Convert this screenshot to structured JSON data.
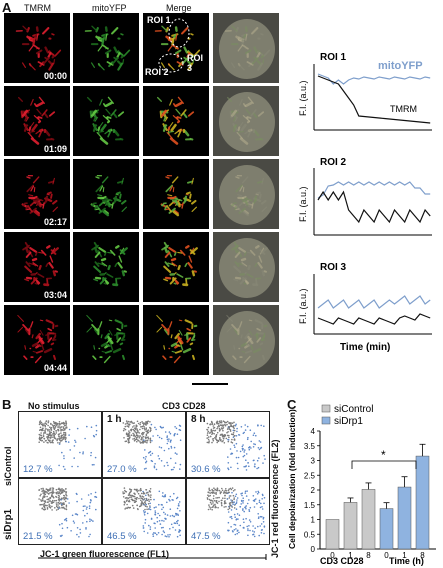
{
  "panel_a": {
    "letter": "A",
    "columns": [
      "TMRM",
      "mitoYFP",
      "Merge",
      ""
    ],
    "timestamps": [
      "00:00",
      "01:09",
      "02:17",
      "03:04",
      "04:44"
    ],
    "roi_labels_on_image": [
      "ROI 1",
      "ROI 2",
      "ROI 3"
    ],
    "traces": {
      "ylabel": "F.I. (a.u.)",
      "xlabel": "Time (min)",
      "roi1_title": "ROI 1",
      "roi2_title": "ROI 2",
      "roi3_title": "ROI 3",
      "mito_label": "mitoYFP",
      "tmrm_label": "TMRM",
      "colors": {
        "mito": "#7f9fcc",
        "tmrm": "#111111"
      }
    }
  },
  "panel_b": {
    "letter": "B",
    "no_stimulus": "No stimulus",
    "cd3cd28": "CD3 CD28",
    "t1": "1 h",
    "t8": "8 h",
    "row_labels": [
      "siControl",
      "siDrp1"
    ],
    "percents": [
      [
        "12.7 %",
        "27.0 %",
        "30.6 %"
      ],
      [
        "21.5 %",
        "46.5 %",
        "47.5 %"
      ]
    ],
    "xlabel": "JC-1 green fluorescence (FL1)",
    "ylabel": "JC-1 red fluorescence (FL2)"
  },
  "panel_c": {
    "letter": "C",
    "legend": [
      "siControl",
      "siDrp1"
    ],
    "ylabel": "Cell depolarization (fold induction)",
    "xlabel_time": "Time (h)",
    "xlabel_stim": "CD3 CD28",
    "significance": "*",
    "colors": {
      "siControl": "#c9c9c9",
      "siDrp1": "#8fb3e0"
    },
    "chart_data": {
      "type": "bar",
      "categories": [
        "0",
        "1",
        "8",
        "0",
        "1",
        "8"
      ],
      "groups": [
        "siControl",
        "siControl",
        "siControl",
        "siDrp1",
        "siDrp1",
        "siDrp1"
      ],
      "values": [
        1.0,
        1.58,
        2.02,
        1.37,
        2.1,
        3.15
      ],
      "errors": [
        0.0,
        0.15,
        0.22,
        0.2,
        0.35,
        0.4
      ],
      "yticks": [
        "0",
        "0.5",
        "1",
        "1.5",
        "2",
        "2.5",
        "3",
        "3.5",
        "4"
      ],
      "ylim": [
        0,
        4
      ]
    }
  }
}
